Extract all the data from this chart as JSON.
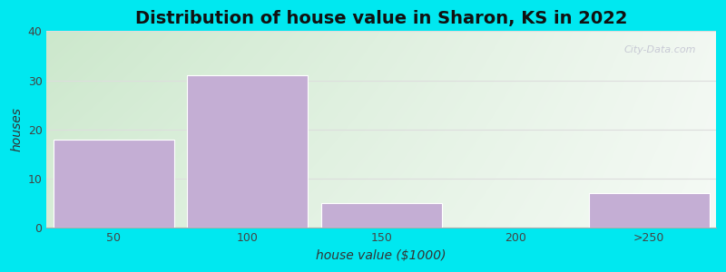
{
  "title": "Distribution of house value in Sharon, KS in 2022",
  "xlabel": "house value ($1000)",
  "ylabel": "houses",
  "categories": [
    "50",
    "100",
    "150",
    "200",
    ">250"
  ],
  "values": [
    18,
    31,
    5,
    0,
    7
  ],
  "bar_color": "#c4aed4",
  "ylim": [
    0,
    40
  ],
  "yticks": [
    0,
    10,
    20,
    30,
    40
  ],
  "figure_bg": "#00e8f0",
  "grid_color": "#e0e0e0",
  "title_fontsize": 14,
  "label_fontsize": 10,
  "tick_fontsize": 9,
  "bar_width": 0.9,
  "grad_left": "#d4edd4",
  "grad_right": "#f0f5ee",
  "grad_top": "#e8f5e2",
  "grad_bottom": "#ddf0dd"
}
